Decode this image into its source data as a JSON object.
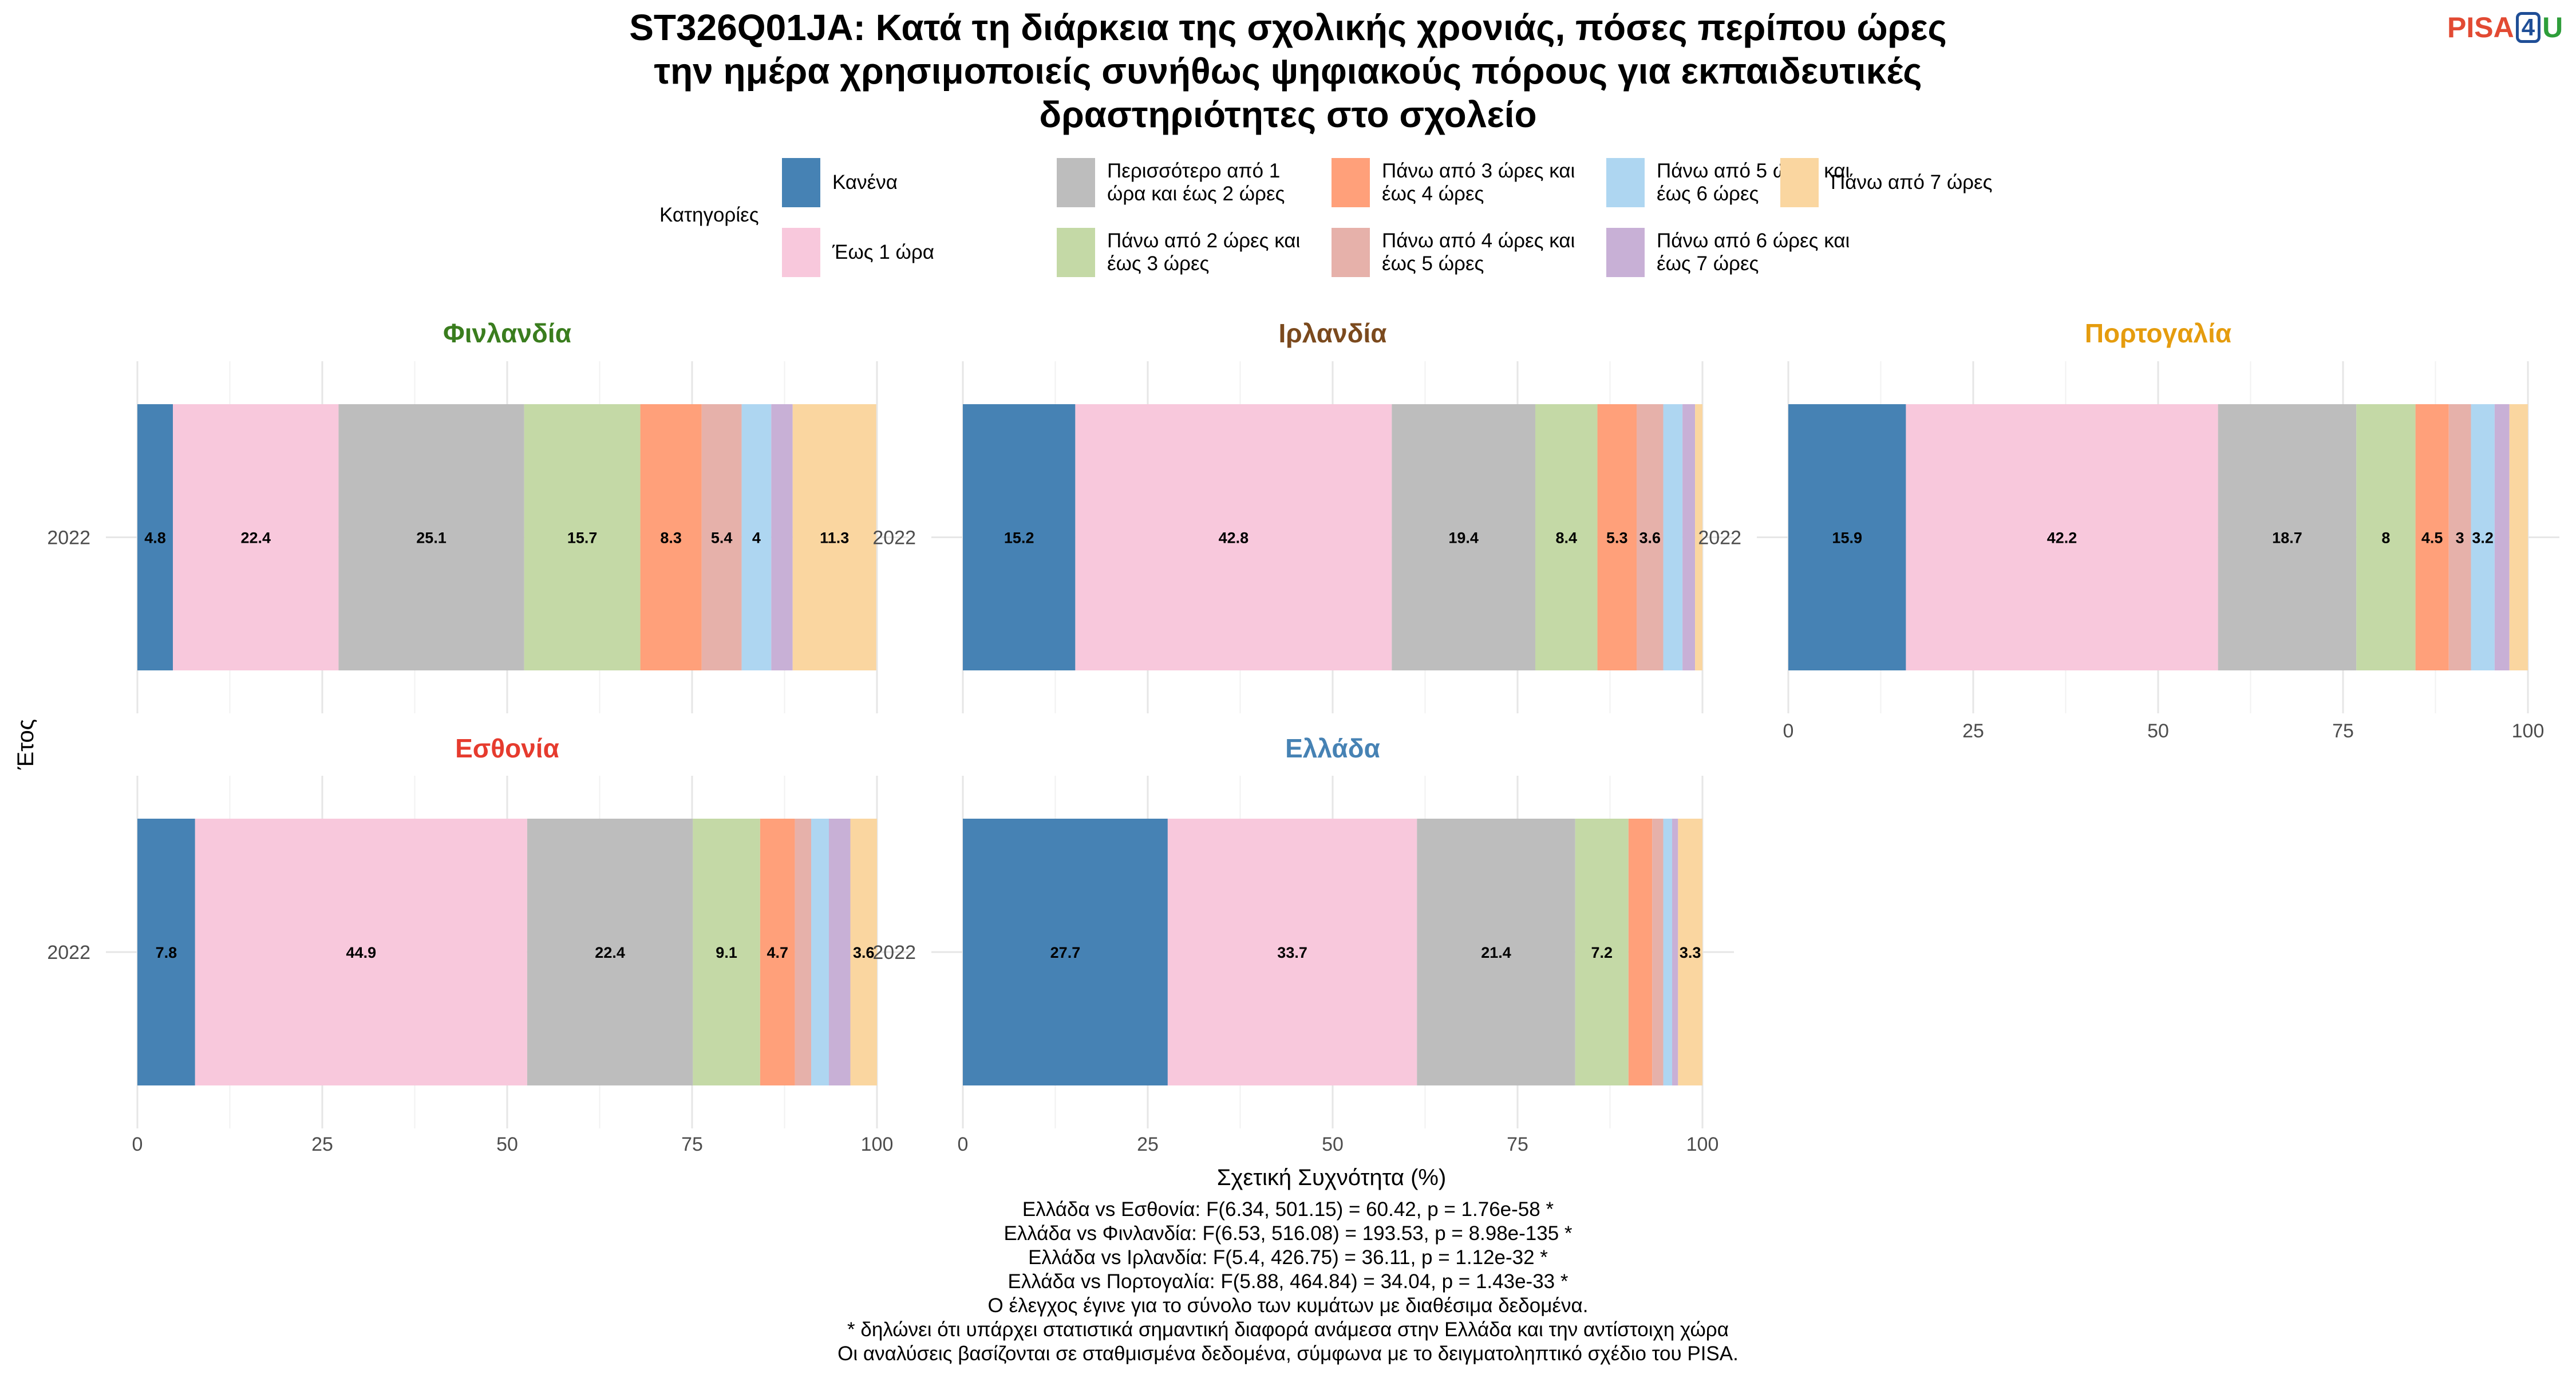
{
  "title": {
    "lines": [
      "ST326Q01JA: Κατά τη διάρκεια της σχολικής χρονιάς, πόσες περίπου ώρες",
      "την ημέρα χρησιμοποιείς συνήθως ψηφιακούς πόρους για εκπαιδευτικές",
      "δραστηριότητες στο σχολείο"
    ]
  },
  "logo": {
    "part1": "PISA",
    "part2": "4",
    "part3": "U"
  },
  "legend": {
    "title": "Κατηγορίες",
    "items": [
      {
        "lines": [
          "Κανένα"
        ],
        "color": "#4682b4"
      },
      {
        "lines": [
          "Έως 1 ώρα"
        ],
        "color": "#f8c8dc"
      },
      {
        "lines": [
          "Περισσότερο από 1",
          "ώρα και έως 2 ώρες"
        ],
        "color": "#bdbdbd"
      },
      {
        "lines": [
          "Πάνω από 2 ώρες και",
          "έως 3 ώρες"
        ],
        "color": "#c4d9a6"
      },
      {
        "lines": [
          "Πάνω από 3 ώρες και",
          "έως 4 ώρες"
        ],
        "color": "#ffa07a"
      },
      {
        "lines": [
          "Πάνω από 4 ώρες και",
          "έως 5 ώρες"
        ],
        "color": "#e6b1aa"
      },
      {
        "lines": [
          "Πάνω από 5 ώρες και",
          "έως 6 ώρες"
        ],
        "color": "#aed6f1"
      },
      {
        "lines": [
          "Πάνω από 6 ώρες και",
          "έως 7 ώρες"
        ],
        "color": "#c8b0d6"
      },
      {
        "lines": [
          "Πάνω από 7 ώρες"
        ],
        "color": "#fad6a0"
      }
    ]
  },
  "chart_data": {
    "type": "bar",
    "orientation": "horizontal-stacked",
    "xlabel": "Σχετική Συχνότητα (%)",
    "ylabel": "Έτος",
    "xlim": [
      0,
      100
    ],
    "xticks": [
      0,
      25,
      50,
      75,
      100
    ],
    "grid": true,
    "legend_position": "top",
    "category_names": [
      "Κανένα",
      "Έως 1 ώρα",
      "Περισσότερο από 1 ώρα και έως 2 ώρες",
      "Πάνω από 2 ώρες και έως 3 ώρες",
      "Πάνω από 3 ώρες και έως 4 ώρες",
      "Πάνω από 4 ώρες και έως 5 ώρες",
      "Πάνω από 5 ώρες και έως 6 ώρες",
      "Πάνω από 6 ώρες και έως 7 ώρες",
      "Πάνω από 7 ώρες"
    ],
    "panels": [
      {
        "country": "Φινλανδία",
        "title_color": "#3a7d1e",
        "year": "2022",
        "values": [
          4.8,
          22.4,
          25.1,
          15.7,
          8.3,
          5.4,
          4,
          2.9,
          11.3
        ],
        "labels": [
          "4.8",
          "22.4",
          "25.1",
          "15.7",
          "8.3",
          "5.4",
          "4",
          "",
          "11.3"
        ]
      },
      {
        "country": "Ιρλανδία",
        "title_color": "#7b4a1e",
        "year": "2022",
        "values": [
          15.2,
          42.8,
          19.4,
          8.4,
          5.3,
          3.6,
          2.6,
          1.7,
          1.0
        ],
        "labels": [
          "15.2",
          "42.8",
          "19.4",
          "8.4",
          "5.3",
          "3.6",
          "",
          "",
          ""
        ]
      },
      {
        "country": "Πορτογαλία",
        "title_color": "#e59c0e",
        "year": "2022",
        "values": [
          15.9,
          42.2,
          18.7,
          8,
          4.5,
          3,
          3.2,
          2.0,
          2.5
        ],
        "labels": [
          "15.9",
          "42.2",
          "18.7",
          "8",
          "4.5",
          "3",
          "3.2",
          "",
          ""
        ]
      },
      {
        "country": "Εσθονία",
        "title_color": "#e63b2e",
        "year": "2022",
        "values": [
          7.8,
          44.9,
          22.4,
          9.1,
          4.7,
          2.2,
          2.4,
          2.9,
          3.6
        ],
        "labels": [
          "7.8",
          "44.9",
          "22.4",
          "9.1",
          "4.7",
          "",
          "",
          "",
          "3.6"
        ]
      },
      {
        "country": "Ελλάδα",
        "title_color": "#4682b4",
        "year": "2022",
        "values": [
          27.7,
          33.7,
          21.4,
          7.2,
          3.2,
          1.5,
          1.2,
          0.8,
          3.3
        ],
        "labels": [
          "27.7",
          "33.7",
          "21.4",
          "7.2",
          "",
          "",
          "",
          "",
          "3.3"
        ]
      }
    ]
  },
  "footnotes": [
    "Ελλάδα vs Εσθονία: F(6.34, 501.15) = 60.42, p = 1.76e-58 *",
    "Ελλάδα vs Φινλανδία: F(6.53, 516.08) = 193.53, p = 8.98e-135 *",
    "Ελλάδα vs Ιρλανδία: F(5.4, 426.75) = 36.11, p = 1.12e-32 *",
    "Ελλάδα vs Πορτογαλία: F(5.88, 464.84) = 34.04, p = 1.43e-33 *",
    "Ο έλεγχος έγινε για το σύνολο των κυμάτων με διαθέσιμα δεδομένα.",
    "* δηλώνει ότι υπάρχει στατιστικά σημαντική διαφορά ανάμεσα στην Ελλάδα και την αντίστοιχη χώρα",
    "Οι αναλύσεις βασίζονται σε σταθμισμένα δεδομένα, σύμφωνα με το δειγματοληπτικό σχέδιο του PISA."
  ]
}
